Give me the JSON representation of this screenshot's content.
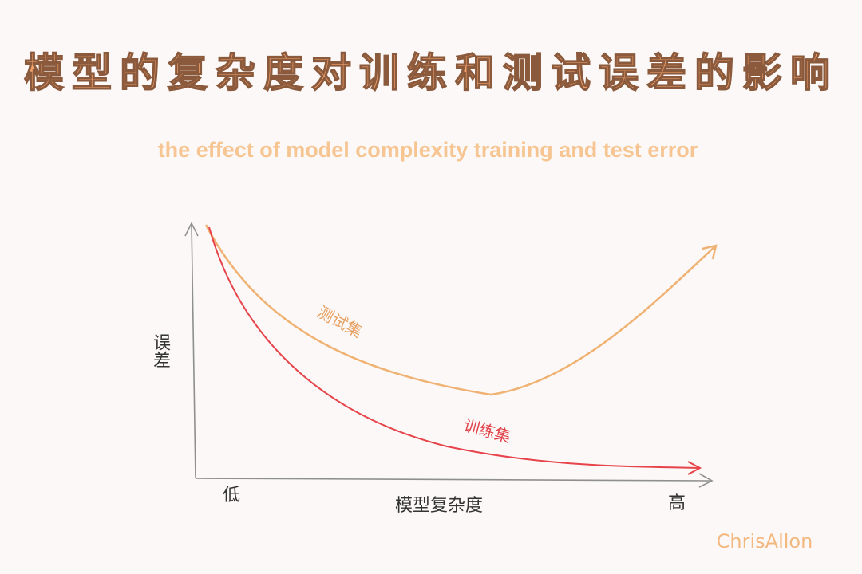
{
  "header": {
    "title": "模型的复杂度对训练和测试误差的影响",
    "subtitle": "the effect of model complexity training and test error"
  },
  "axes": {
    "y_label": "误差",
    "x_label": "模型复杂度",
    "x_low": "低",
    "x_high": "高"
  },
  "curves": [
    {
      "label": "测试集"
    },
    {
      "label": "训练集"
    }
  ],
  "signature": "ChrisAllon"
}
